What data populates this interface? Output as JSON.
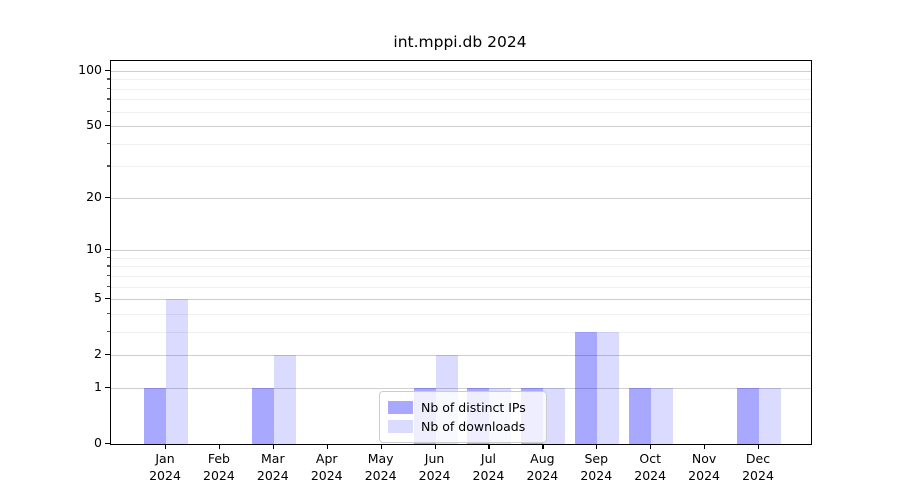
{
  "chart_data": {
    "type": "bar",
    "title": "int.mppi.db 2024",
    "categories": [
      "Jan",
      "Feb",
      "Mar",
      "Apr",
      "May",
      "Jun",
      "Jul",
      "Aug",
      "Sep",
      "Oct",
      "Nov",
      "Dec"
    ],
    "category_sublabel": "2024",
    "series": [
      {
        "name": "Nb of distinct IPs",
        "color": "#0000ff57",
        "values": [
          1,
          0,
          1,
          0,
          0,
          1,
          1,
          1,
          3,
          1,
          0,
          1
        ]
      },
      {
        "name": "Nb of downloads",
        "color": "#0000ff24",
        "values": [
          5,
          0,
          2,
          0,
          0,
          2,
          1,
          1,
          3,
          1,
          0,
          1
        ]
      }
    ],
    "yscale": "log1p",
    "ylim": [
      0,
      113
    ],
    "yticks": [
      0,
      1,
      2,
      5,
      10,
      20,
      50,
      100
    ],
    "minor_yticks": [
      3,
      4,
      6,
      7,
      8,
      9,
      30,
      40,
      60,
      70,
      80,
      90
    ],
    "xlabel": "",
    "ylabel": "",
    "grid": true,
    "legend_position": "lower center",
    "colors": {
      "grid_major": "#cfcfcf",
      "grid_minor": "#efefef",
      "axis": "#000000",
      "background": "#ffffff"
    }
  }
}
